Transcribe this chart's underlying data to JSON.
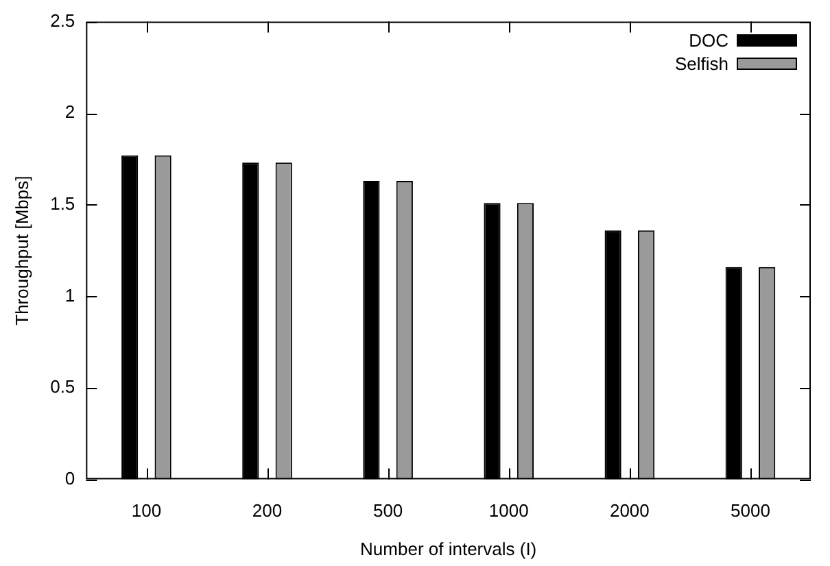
{
  "chart_data": {
    "type": "bar",
    "xlabel": "Number of intervals (I)",
    "ylabel": "Throughput [Mbps]",
    "categories": [
      "100",
      "200",
      "500",
      "1000",
      "2000",
      "5000"
    ],
    "series": [
      {
        "name": "DOC",
        "color": "#000000",
        "values": [
          1.77,
          1.73,
          1.63,
          1.51,
          1.36,
          1.16
        ]
      },
      {
        "name": "Selfish",
        "color": "#9a9a9a",
        "values": [
          1.77,
          1.73,
          1.63,
          1.51,
          1.36,
          1.16
        ]
      }
    ],
    "ylim": [
      0,
      2.5
    ],
    "yticks": [
      0,
      0.5,
      1,
      1.5,
      2,
      2.5
    ],
    "grid": false,
    "legend": "top right"
  }
}
